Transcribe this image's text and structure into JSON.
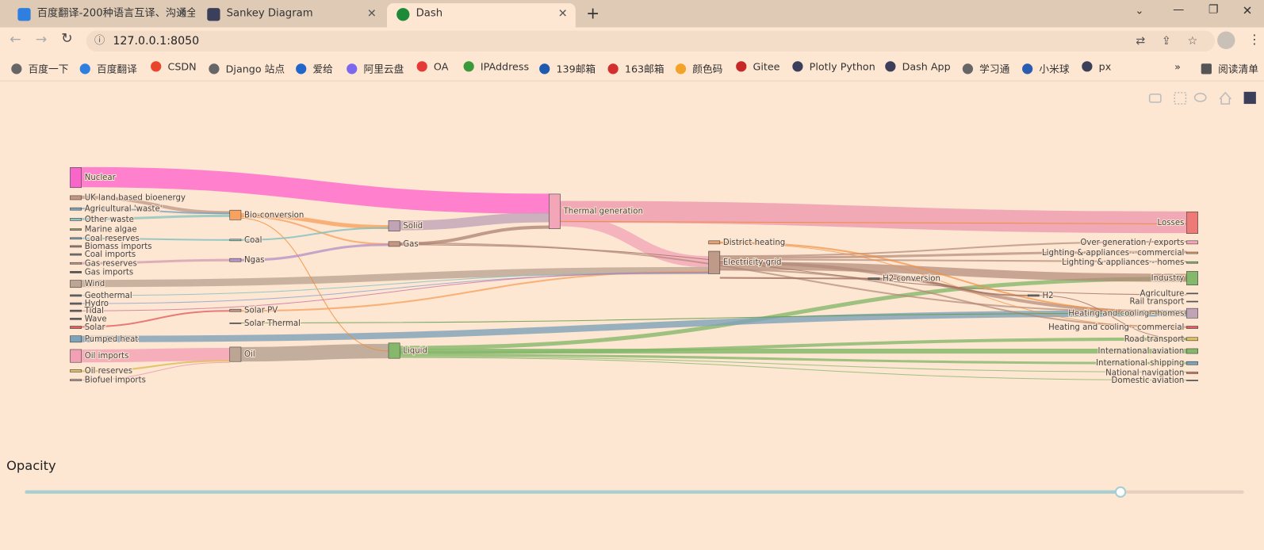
{
  "browser": {
    "tabs": [
      "百度翻译-200种语言互译、沟通全",
      "Sankey Diagram",
      "Dash"
    ],
    "url": "127.0.0.1:8050",
    "bookmarks": [
      "百度一下",
      "百度翻译",
      "CSDN",
      "Django 站点",
      "爱给",
      "阿里云盘",
      "OA",
      "IPAddress",
      "139邮箱",
      "163邮箱",
      "颜色码",
      "Gitee",
      "Plotly Python",
      "Dash App",
      "学习通",
      "小米球",
      "px"
    ],
    "reading_list": "阅读清单"
  },
  "sankey": {
    "nodes": [
      "Nuclear",
      "UK land based bioenergy",
      "Agricultural 'waste'",
      "Other waste",
      "Marine algae",
      "Coal reserves",
      "Biomass imports",
      "Coal imports",
      "Gas reserves",
      "Gas imports",
      "Wind",
      "Geothermal",
      "Hydro",
      "Tidal",
      "Wave",
      "Solar",
      "Pumped heat",
      "Oil imports",
      "Oil reserves",
      "Biofuel imports",
      "Bio-conversion",
      "Coal",
      "Ngas",
      "Solar PV",
      "Solar Thermal",
      "Oil",
      "Solid",
      "Gas",
      "Liquid",
      "Thermal generation",
      "District heating",
      "Electricity grid",
      "H2 conversion",
      "H2",
      "Losses",
      "Over generation / exports",
      "Lighting & appliances - commercial",
      "Lighting & appliances - homes",
      "Industry",
      "Agriculture",
      "Rail transport",
      "Heating and cooling - homes",
      "Heating and cooling - commercial",
      "Road transport",
      "International aviation",
      "International shipping",
      "National navigation",
      "Domestic aviation"
    ]
  },
  "slider": {
    "label": "Opacity"
  }
}
